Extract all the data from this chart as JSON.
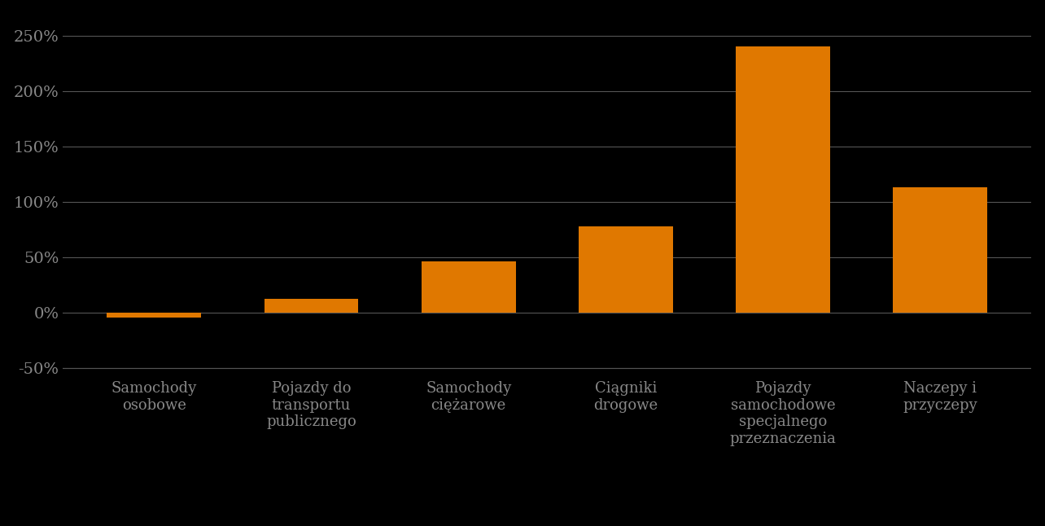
{
  "categories": [
    "Samochody\nosobowe",
    "Pojazdy do\ntransportu\npublicznego",
    "Samochody\nciężarowe",
    "Ciągniki\ndrogowe",
    "Pojazdy\nsamochodowe\nspecjalnego\nprzeznaczenia",
    "Naczepy i\nprzyczepy"
  ],
  "values": [
    -5,
    12,
    46,
    78,
    240,
    113
  ],
  "bar_color": "#e07800",
  "background_color": "#000000",
  "text_color": "#888888",
  "grid_color": "#555555",
  "ylim": [
    -60,
    270
  ],
  "yticks": [
    -50,
    0,
    50,
    100,
    150,
    200,
    250
  ],
  "bar_width": 0.6,
  "label_fontsize": 13,
  "ytick_fontsize": 14
}
